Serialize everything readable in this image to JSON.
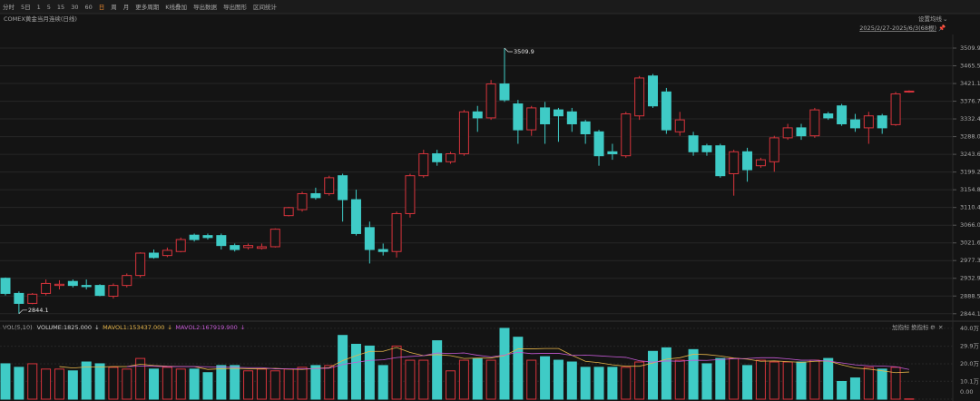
{
  "toolbar": {
    "items": [
      "分时",
      "5日",
      "1",
      "5",
      "15",
      "30",
      "60",
      "日",
      "周",
      "月",
      "更多周期",
      "K线叠加",
      "导出数据",
      "导出图形",
      "区间统计"
    ],
    "active_item": "日"
  },
  "chart_data": [
    {
      "type": "candlestick",
      "title": "COMEX黄金当月连续(日线)",
      "settings_label": "设置均线",
      "date_range": "2025/2/27-2025/6/3(68根)",
      "up_color": "#d8343c",
      "down_color": "#3fcbc6",
      "ylim": [
        2830,
        3544
      ],
      "yticks": [
        3509.9,
        3465.5,
        3421.1,
        3376.7,
        3332.4,
        {
          "value": 3288,
          "label": "3288.0"
        },
        3243.6,
        3199.2,
        3154.8,
        3110.4,
        {
          "value": 3066,
          "label": "3066.0"
        },
        3021.6,
        2977.3,
        2932.9,
        2888.5,
        2844.1
      ],
      "grid": true,
      "annotations": [
        {
          "value": 3509.9,
          "at": "high"
        },
        {
          "value": 2844.1,
          "at": "low"
        }
      ],
      "open": [
        2933,
        2895,
        2870,
        2895,
        2915,
        2925,
        2915,
        2915,
        2888,
        2915,
        2940,
        2996,
        2990,
        3000,
        3041,
        3040,
        3040,
        3015,
        3010,
        3008,
        3012,
        3090,
        3105,
        3145,
        3145,
        3190,
        3130,
        3060,
        3005,
        3000,
        3095,
        3190,
        3245,
        3225,
        3245,
        3350,
        3335,
        3420,
        3370,
        3305,
        3360,
        3355,
        3350,
        3325,
        3300,
        3250,
        3240,
        3340,
        3440,
        3400,
        3300,
        3290,
        3265,
        3265,
        3195,
        3250,
        3215,
        3225,
        3285,
        3310,
        3290,
        3345,
        3365,
        3330,
        3310,
        3340,
        3318,
        3400
      ],
      "high": [
        2935,
        2900,
        2896,
        2930,
        2928,
        2930,
        2930,
        2918,
        2920,
        2945,
        2998,
        3005,
        3010,
        3035,
        3045,
        3045,
        3045,
        3020,
        3020,
        3020,
        3058,
        3112,
        3150,
        3160,
        3190,
        3195,
        3155,
        3075,
        3020,
        3100,
        3195,
        3255,
        3255,
        3250,
        3355,
        3365,
        3430,
        3509.9,
        3380,
        3365,
        3375,
        3360,
        3360,
        3330,
        3305,
        3270,
        3350,
        3440,
        3445,
        3410,
        3350,
        3300,
        3270,
        3270,
        3255,
        3260,
        3235,
        3290,
        3320,
        3320,
        3360,
        3350,
        3370,
        3345,
        3350,
        3345,
        3400,
        3404
      ],
      "low": [
        2890,
        2844.1,
        2868,
        2890,
        2905,
        2910,
        2905,
        2888,
        2882,
        2910,
        2935,
        2982,
        2986,
        2998,
        3025,
        3030,
        3005,
        3000,
        3005,
        3005,
        3010,
        3088,
        3100,
        3130,
        3140,
        3075,
        3040,
        2970,
        2990,
        2985,
        3085,
        3185,
        3215,
        3220,
        3240,
        3300,
        3330,
        3375,
        3270,
        3290,
        3270,
        3275,
        3300,
        3270,
        3215,
        3230,
        3235,
        3330,
        3360,
        3295,
        3290,
        3240,
        3240,
        3185,
        3140,
        3175,
        3210,
        3200,
        3280,
        3280,
        3285,
        3330,
        3315,
        3300,
        3270,
        3295,
        3315,
        3398
      ],
      "close": [
        2895,
        2870,
        2893,
        2920,
        2918,
        2915,
        2912,
        2890,
        2915,
        2940,
        2996,
        2985,
        3003,
        3030,
        3030,
        3035,
        3015,
        3005,
        3015,
        3012,
        3056,
        3110,
        3145,
        3135,
        3185,
        3130,
        3045,
        3005,
        3000,
        3095,
        3190,
        3245,
        3225,
        3245,
        3350,
        3335,
        3420,
        3380,
        3305,
        3360,
        3320,
        3340,
        3320,
        3295,
        3240,
        3245,
        3345,
        3435,
        3365,
        3305,
        3330,
        3250,
        3250,
        3190,
        3250,
        3205,
        3230,
        3285,
        3310,
        3290,
        3355,
        3335,
        3320,
        3310,
        3340,
        3310,
        3395,
        3402
      ]
    },
    {
      "type": "bar",
      "indicator": "VOL(5,10)",
      "buttons": [
        "加指标",
        "换指标"
      ],
      "ylim": [
        0,
        420000
      ],
      "yticks": [
        {
          "value": 400000,
          "label": "40.0万"
        },
        {
          "value": 299000,
          "label": "29.9万"
        },
        {
          "value": 200000,
          "label": "20.0万"
        },
        {
          "value": 101000,
          "label": "10.1万"
        },
        {
          "value": 0,
          "label": "0.00"
        }
      ],
      "series": [
        {
          "name": "VOLUME",
          "legend_label": "VOLUME:1825.000",
          "color": "#d0d0d0",
          "values": [
            200000,
            180000,
            200000,
            170000,
            170000,
            160000,
            210000,
            200000,
            180000,
            170000,
            230000,
            170000,
            180000,
            170000,
            170000,
            150000,
            190000,
            190000,
            160000,
            170000,
            160000,
            170000,
            180000,
            190000,
            190000,
            360000,
            310000,
            300000,
            190000,
            300000,
            220000,
            220000,
            330000,
            160000,
            220000,
            230000,
            220000,
            400000,
            350000,
            220000,
            240000,
            220000,
            210000,
            180000,
            180000,
            180000,
            180000,
            210000,
            270000,
            290000,
            220000,
            280000,
            200000,
            230000,
            230000,
            190000,
            220000,
            210000,
            210000,
            210000,
            220000,
            230000,
            100000,
            120000,
            180000,
            170000,
            180000,
            1825
          ]
        },
        {
          "name": "MAVOL1",
          "legend_label": "MAVOL1:153437.000",
          "color": "#e6b54a",
          "values": [
            null,
            null,
            null,
            null,
            184000,
            176000,
            182000,
            182000,
            184000,
            184000,
            198000,
            190000,
            186000,
            184000,
            184000,
            168000,
            172000,
            174000,
            172000,
            172000,
            174000,
            170000,
            168000,
            174000,
            178000,
            218000,
            246000,
            270000,
            270000,
            292000,
            264000,
            246000,
            252000,
            246000,
            230000,
            232000,
            232000,
            246000,
            284000,
            284000,
            286000,
            286000,
            248000,
            214000,
            206000,
            194000,
            186000,
            186000,
            204000,
            226000,
            234000,
            254000,
            252000,
            244000,
            232000,
            226000,
            214000,
            216000,
            212000,
            208000,
            214000,
            216000,
            194000,
            176000,
            170000,
            160000,
            150000,
            153437
          ]
        },
        {
          "name": "MAVOL2",
          "legend_label": "MAVOL2:167919.900",
          "color": "#c65ad6",
          "values": [
            null,
            null,
            null,
            null,
            null,
            null,
            null,
            null,
            null,
            184000,
            187000,
            186000,
            184000,
            184000,
            184000,
            183000,
            181000,
            180000,
            178000,
            178000,
            171000,
            171000,
            171000,
            173000,
            175000,
            196000,
            208000,
            219000,
            222000,
            235000,
            241000,
            246000,
            261000,
            258000,
            261000,
            248000,
            239000,
            249000,
            265000,
            257000,
            259000,
            259000,
            247000,
            249000,
            245000,
            240000,
            236000,
            217000,
            209000,
            216000,
            214000,
            220000,
            219000,
            224000,
            229000,
            230000,
            234000,
            234000,
            228000,
            220000,
            220000,
            215000,
            205000,
            194000,
            189000,
            187000,
            183000,
            167919.9
          ]
        }
      ]
    }
  ]
}
